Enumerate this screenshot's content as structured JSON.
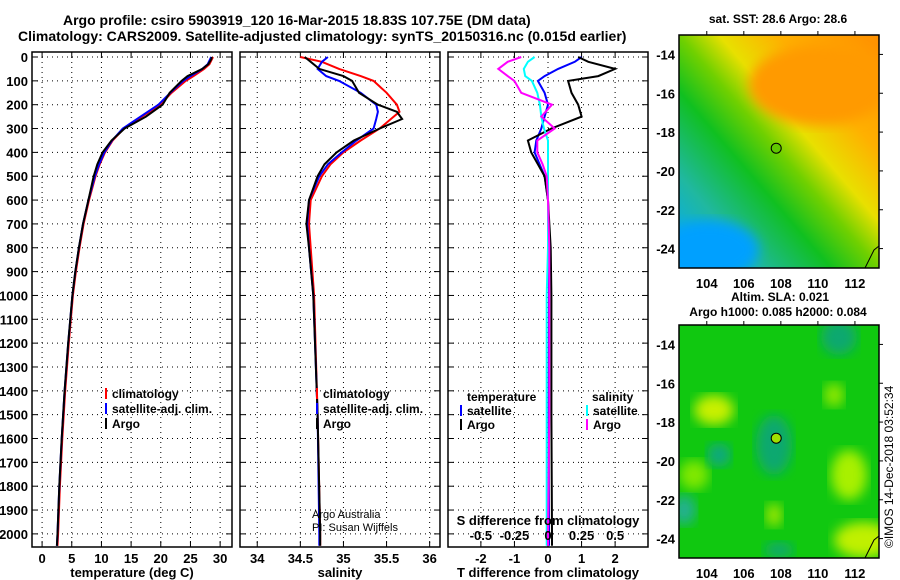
{
  "header": {
    "line1": "Argo profile: csiro 5903919_120 16-Mar-2015 18.83S 107.75E (DM data)",
    "line2": "Climatology: CARS2009. Satellite-adjusted climatology: synTS_20150316.nc (0.015d earlier)"
  },
  "colors": {
    "climatology": "#ff0000",
    "satellite": "#0000ff",
    "argo": "#000000",
    "sal_satellite": "#00ffff",
    "sal_argo": "#ff00ff"
  },
  "chart_data": [
    {
      "type": "line",
      "title": "",
      "xlabel": "temperature (deg C)",
      "ylabel": "",
      "xlim": [
        -1.7,
        32
      ],
      "ylim": [
        2055,
        -21
      ],
      "xticks": [
        "0",
        "5",
        "10",
        "15",
        "20",
        "25",
        "30"
      ],
      "yticks": [
        "0",
        "100",
        "200",
        "300",
        "400",
        "500",
        "600",
        "700",
        "800",
        "900",
        "1000",
        "1100",
        "1200",
        "1300",
        "1400",
        "1500",
        "1600",
        "1700",
        "1800",
        "1900",
        "2000"
      ],
      "legend": [
        "climatology",
        "satellite-adj. clim.",
        "Argo"
      ],
      "depth": [
        0,
        10,
        30,
        50,
        80,
        100,
        150,
        200,
        250,
        300,
        350,
        400,
        450,
        500,
        600,
        700,
        800,
        900,
        1000,
        1200,
        1400,
        1600,
        1800,
        2000,
        2050
      ],
      "series": [
        {
          "name": "climatology",
          "values": [
            28.8,
            28.6,
            28.2,
            27.3,
            25.5,
            24.2,
            21.8,
            19.9,
            16.8,
            13.8,
            11.9,
            10.6,
            9.7,
            9.0,
            7.9,
            7.0,
            6.3,
            5.7,
            5.2,
            4.5,
            3.9,
            3.4,
            3.0,
            2.7,
            2.6
          ]
        },
        {
          "name": "satellite-adj. clim.",
          "values": [
            28.5,
            28.3,
            27.9,
            27.0,
            25.0,
            23.8,
            21.6,
            19.6,
            16.6,
            13.6,
            11.8,
            10.5,
            9.6,
            8.9,
            7.8,
            6.9,
            6.2,
            5.6,
            5.1,
            4.4,
            3.8,
            3.3,
            2.9,
            2.6,
            2.5
          ]
        },
        {
          "name": "Argo",
          "values": [
            28.6,
            28.5,
            28.0,
            27.0,
            24.5,
            23.5,
            21.5,
            20.3,
            17.5,
            13.9,
            11.7,
            10.2,
            9.3,
            8.7,
            7.8,
            6.9,
            6.2,
            5.6,
            5.1,
            4.4,
            3.8,
            3.3,
            2.9,
            2.6,
            2.5
          ]
        }
      ]
    },
    {
      "type": "line",
      "title": "",
      "xlabel": "salinity",
      "xlim": [
        33.8,
        36.12
      ],
      "ylim": [
        2055,
        -21
      ],
      "xticks": [
        "34",
        "34.5",
        "35",
        "35.5",
        "36"
      ],
      "legend": [
        "climatology",
        "satellite-adj. clim.",
        "Argo"
      ],
      "annotation": [
        "Argo Australia",
        "PI: Susan Wijffels"
      ],
      "depth": [
        0,
        20,
        50,
        80,
        100,
        150,
        200,
        230,
        260,
        300,
        350,
        400,
        450,
        500,
        600,
        700,
        800,
        1000,
        1500,
        2000,
        2050
      ],
      "series": [
        {
          "name": "climatology",
          "values": [
            34.5,
            34.75,
            34.95,
            35.2,
            35.35,
            35.5,
            35.62,
            35.65,
            35.55,
            35.42,
            35.2,
            35.0,
            34.85,
            34.75,
            34.62,
            34.6,
            34.62,
            34.66,
            34.7,
            34.73,
            34.73
          ]
        },
        {
          "name": "satellite-adj. clim.",
          "values": [
            34.82,
            34.75,
            34.7,
            34.8,
            34.95,
            35.2,
            35.38,
            35.4,
            35.38,
            35.35,
            35.15,
            34.98,
            34.82,
            34.72,
            34.6,
            34.58,
            34.6,
            34.65,
            34.7,
            34.72,
            34.72
          ]
        },
        {
          "name": "Argo",
          "values": [
            34.55,
            34.62,
            34.72,
            35.0,
            35.1,
            35.18,
            35.4,
            35.62,
            35.68,
            35.42,
            35.12,
            34.92,
            34.78,
            34.7,
            34.6,
            34.57,
            34.6,
            34.65,
            34.7,
            34.73,
            34.73
          ]
        }
      ]
    },
    {
      "type": "line",
      "xlabel": "T difference from climatology",
      "x2label": "S difference from climatology",
      "xlim": [
        -2.98,
        2.98
      ],
      "x2lim": [
        -0.745,
        0.745
      ],
      "ylim": [
        2055,
        -21
      ],
      "xticks": [
        "-2",
        "-1",
        "0",
        "1",
        "2"
      ],
      "x2ticks": [
        "-0.5",
        "-0.25",
        "0",
        "0.25",
        "0.5"
      ],
      "legend_temperature_title": "temperature",
      "legend_salinity_title": "salinity",
      "legend_temperature": [
        "satellite",
        "Argo"
      ],
      "legend_salinity": [
        "satellite",
        "Argo"
      ],
      "depth": [
        0,
        20,
        50,
        80,
        100,
        150,
        200,
        250,
        300,
        350,
        400,
        450,
        500,
        600,
        800,
        1000,
        1500,
        2000,
        2050
      ],
      "series": [
        {
          "name": "T satellite",
          "axis": "T",
          "values": [
            1.0,
            0.8,
            0.3,
            -0.1,
            -0.3,
            -0.1,
            0.0,
            -0.1,
            -0.2,
            -0.35,
            -0.4,
            -0.25,
            -0.1,
            0.0,
            0.02,
            0.03,
            0.02,
            0.03,
            0.03
          ]
        },
        {
          "name": "T Argo",
          "axis": "T",
          "values": [
            0.9,
            1.2,
            2.0,
            1.5,
            0.6,
            0.7,
            0.9,
            1.0,
            0.1,
            -0.6,
            -0.5,
            -0.3,
            -0.1,
            0.0,
            0.08,
            0.1,
            0.1,
            0.12,
            0.12
          ]
        },
        {
          "name": "S satellite",
          "axis": "S",
          "values": [
            -0.1,
            -0.15,
            -0.18,
            -0.17,
            -0.12,
            -0.08,
            -0.06,
            -0.05,
            -0.03,
            0.0,
            0.0,
            0.0,
            0.0,
            0.0,
            0.0,
            -0.01,
            -0.01,
            -0.01,
            -0.01
          ]
        },
        {
          "name": "S Argo",
          "axis": "S",
          "values": [
            -0.2,
            -0.3,
            -0.37,
            -0.3,
            -0.25,
            -0.2,
            0.03,
            -0.05,
            0.05,
            -0.08,
            -0.08,
            -0.04,
            -0.01,
            0.0,
            0.01,
            0.01,
            0.01,
            0.0,
            0.0
          ]
        }
      ]
    },
    {
      "type": "heatmap",
      "title": "sat. SST: 28.6 Argo: 28.6",
      "xlim": [
        102.5,
        113.3
      ],
      "ylim": [
        -25,
        -13
      ],
      "xticks": [
        "104",
        "106",
        "108",
        "110",
        "112"
      ],
      "yticks": [
        "-14",
        "-16",
        "-18",
        "-20",
        "-22",
        "-24"
      ],
      "marker": {
        "lon": 107.75,
        "lat": -18.83
      }
    },
    {
      "type": "heatmap",
      "title": "Altim. SLA: 0.021",
      "subtitle": "Argo h1000: 0.085 h2000: 0.084",
      "xlim": [
        102.5,
        113.3
      ],
      "ylim": [
        -25,
        -13
      ],
      "xticks": [
        "104",
        "106",
        "108",
        "110",
        "112"
      ],
      "yticks": [
        "-14",
        "-16",
        "-18",
        "-20",
        "-22",
        "-24"
      ],
      "marker": {
        "lon": 107.75,
        "lat": -18.83
      }
    }
  ],
  "footer": {
    "credit": "©IMOS 14-Dec-2018 03:52:34"
  }
}
